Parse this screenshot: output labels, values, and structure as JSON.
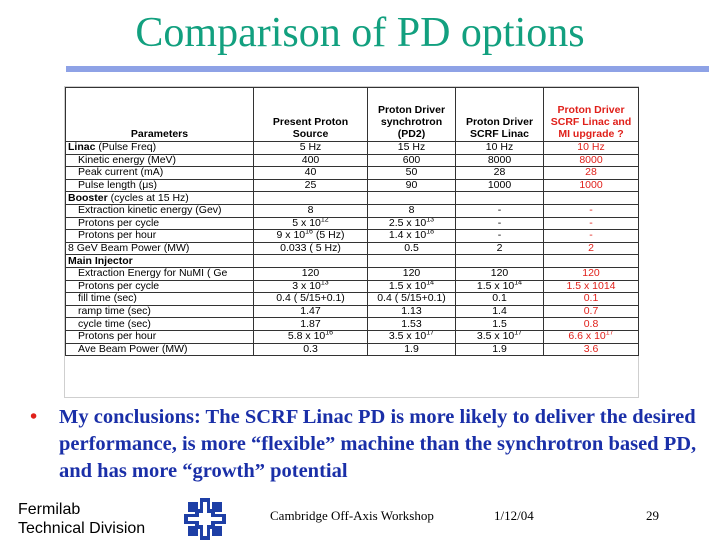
{
  "slide": {
    "title": "Comparison of PD options",
    "bullet": "My conclusions: The SCRF Linac PD is more likely to deliver the desired performance, is more “flexible” machine than the synchrotron based PD, and has more “growth” potential",
    "footer": {
      "org_line1": "Fermilab",
      "org_line2": "Technical Division",
      "workshop": "Cambridge Off-Axis Workshop",
      "date": "1/12/04",
      "page": "29"
    },
    "colors": {
      "title": "#12a07f",
      "bullet_text": "#1a2fa8",
      "accent_red": "#e0201a",
      "rule": "#8ea2e6"
    },
    "logo_icon": "fermilab-logo-icon"
  },
  "table": {
    "headers": [
      "Parameters",
      "Present Proton Source",
      "Proton Driver synchrotron (PD2)",
      "Proton Driver SCRF Linac",
      "Proton Driver SCRF Linac and MI upgrade ?"
    ],
    "rows": [
      {
        "kind": "section",
        "label": "Linac",
        "note": " (Pulse Freq)",
        "v": [
          "5 Hz",
          "15 Hz",
          "10 Hz",
          "10 Hz"
        ]
      },
      {
        "kind": "item",
        "label": "Kinetic energy (MeV)",
        "v": [
          "400",
          "600",
          "8000",
          "8000"
        ]
      },
      {
        "kind": "item",
        "label": "Peak current  (mA)",
        "v": [
          "40",
          "50",
          "28",
          "28"
        ]
      },
      {
        "kind": "item",
        "label": "Pulse length (μs)",
        "v": [
          "25",
          "90",
          "1000",
          "1000"
        ]
      },
      {
        "kind": "section",
        "label": "Booster",
        "note": " (cycles at 15 Hz)",
        "v": [
          "",
          "",
          "",
          ""
        ]
      },
      {
        "kind": "item",
        "label": "Extraction kinetic energy (Gev)",
        "v": [
          "8",
          "8",
          "-",
          "-"
        ]
      },
      {
        "kind": "item",
        "label": "Protons per cycle",
        "v": [
          "5 x 10^12",
          "2.5 x 10^13",
          "-",
          "-"
        ]
      },
      {
        "kind": "item",
        "label": "Protons per hour",
        "v": [
          "9 x 10^16 (5 Hz)",
          "1.4 x 10^18",
          "-",
          "-"
        ]
      },
      {
        "kind": "plain",
        "label": "8 GeV Beam Power (MW)",
        "v": [
          "0.033 ( 5 Hz)",
          "0.5",
          "2",
          "2"
        ]
      },
      {
        "kind": "section",
        "label": "Main Injector",
        "note": "",
        "v": [
          "",
          "",
          "",
          ""
        ]
      },
      {
        "kind": "item",
        "label": "Extraction Energy for NuMI ( Ge",
        "v": [
          "120",
          "120",
          "120",
          "120"
        ]
      },
      {
        "kind": "item",
        "label": "Protons per cycle",
        "v": [
          "3 x 10^13",
          "1.5 x 10^14",
          "1.5 x 10^14",
          "1.5 x 1014"
        ]
      },
      {
        "kind": "item",
        "label": "fill time (sec)",
        "v": [
          "0.4 ( 5/15+0.1)",
          "0.4 ( 5/15+0.1)",
          "0.1",
          "0.1"
        ]
      },
      {
        "kind": "item",
        "label": "ramp time (sec)",
        "v": [
          "1.47",
          "1.13",
          "1.4",
          "0.7"
        ]
      },
      {
        "kind": "item",
        "label": "cycle time (sec)",
        "v": [
          "1.87",
          "1.53",
          "1.5",
          "0.8"
        ]
      },
      {
        "kind": "item",
        "label": "Protons per hour",
        "v": [
          "5.8 x 10^16",
          "3.5 x 10^17",
          "3.5 x 10^17",
          "6.6 x 10^17"
        ]
      },
      {
        "kind": "item",
        "label": "Ave Beam Power (MW)",
        "v": [
          "0.3",
          "1.9",
          "1.9",
          "3.6"
        ]
      }
    ]
  }
}
